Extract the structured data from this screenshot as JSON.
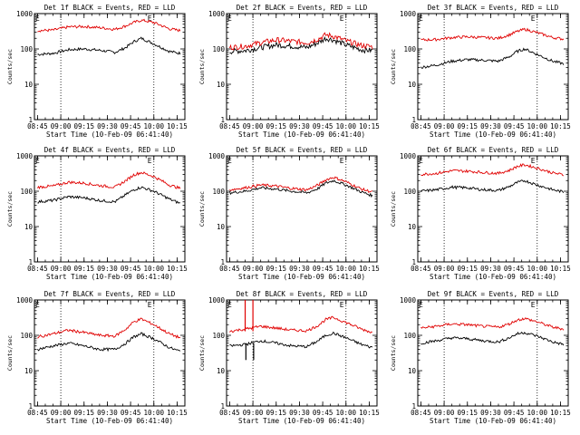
{
  "chart_data": [
    {
      "type": "line",
      "title": "Det 1f BLACK = Events, RED = LLD",
      "xlabel": "Start Time (10-Feb-09 06:41:40)",
      "ylabel": "Counts/sec",
      "xticks": [
        "08:45",
        "09:00",
        "09:15",
        "09:30",
        "09:45",
        "10:00",
        "10:15"
      ],
      "yticks": [
        "1",
        "10",
        "100",
        "1000"
      ],
      "ylim": [
        1,
        1000
      ],
      "yscale": "log",
      "markers": [
        "09:00",
        "10:00"
      ],
      "marker_labels": [
        "E",
        "E"
      ],
      "x": [
        "08:45",
        "08:55",
        "09:05",
        "09:15",
        "09:25",
        "09:35",
        "09:42",
        "09:47",
        "09:52",
        "10:00",
        "10:10",
        "10:17"
      ],
      "series": [
        {
          "name": "BLACK = Events",
          "color": "#000000",
          "values": [
            70,
            75,
            95,
            100,
            92,
            80,
            110,
            160,
            200,
            140,
            85,
            75
          ]
        },
        {
          "name": "RED = LLD",
          "color": "#e00000",
          "values": [
            330,
            340,
            420,
            430,
            400,
            360,
            450,
            560,
            650,
            560,
            370,
            330
          ]
        }
      ]
    },
    {
      "type": "line",
      "title": "Det 2f BLACK = Events, RED = LLD",
      "xlabel": "Start Time (10-Feb-09 06:41:40)",
      "ylabel": "Counts/sec",
      "xticks": [
        "08:45",
        "09:00",
        "09:15",
        "09:30",
        "09:45",
        "10:00",
        "10:15"
      ],
      "yticks": [
        "1",
        "10",
        "100",
        "1000"
      ],
      "ylim": [
        1,
        1000
      ],
      "yscale": "log",
      "markers": [
        "09:00",
        "10:00"
      ],
      "marker_labels": [
        "E",
        "E"
      ],
      "x": [
        "08:45",
        "08:55",
        "09:05",
        "09:15",
        "09:25",
        "09:35",
        "09:42",
        "09:47",
        "09:52",
        "10:00",
        "10:10",
        "10:17"
      ],
      "series": [
        {
          "name": "BLACK = Events",
          "color": "#000000",
          "values": [
            85,
            90,
            110,
            130,
            120,
            110,
            150,
            200,
            180,
            130,
            95,
            90
          ]
        },
        {
          "name": "RED = LLD",
          "color": "#e00000",
          "values": [
            110,
            120,
            150,
            180,
            165,
            150,
            190,
            250,
            230,
            170,
            125,
            115
          ]
        }
      ]
    },
    {
      "type": "line",
      "title": "Det 3f BLACK = Events, RED = LLD",
      "xlabel": "Start Time (10-Feb-09 06:41:40)",
      "ylabel": "Counts/sec",
      "xticks": [
        "08:45",
        "09:00",
        "09:15",
        "09:30",
        "09:45",
        "10:00",
        "10:15"
      ],
      "yticks": [
        "1",
        "10",
        "100",
        "1000"
      ],
      "ylim": [
        1,
        1000
      ],
      "yscale": "log",
      "markers": [
        "09:00",
        "10:00"
      ],
      "marker_labels": [
        "E",
        "E"
      ],
      "x": [
        "08:45",
        "08:55",
        "09:05",
        "09:15",
        "09:25",
        "09:35",
        "09:42",
        "09:47",
        "09:52",
        "10:00",
        "10:10",
        "10:17"
      ],
      "series": [
        {
          "name": "BLACK = Events",
          "color": "#000000",
          "values": [
            30,
            35,
            45,
            50,
            48,
            45,
            60,
            85,
            100,
            70,
            45,
            38
          ]
        },
        {
          "name": "RED = LLD",
          "color": "#e00000",
          "values": [
            180,
            185,
            210,
            220,
            210,
            200,
            250,
            310,
            360,
            290,
            210,
            190
          ]
        }
      ]
    },
    {
      "type": "line",
      "title": "Det 4f BLACK = Events, RED = LLD",
      "xlabel": "Start Time (10-Feb-09 06:41:40)",
      "ylabel": "Counts/sec",
      "xticks": [
        "08:45",
        "09:00",
        "09:15",
        "09:30",
        "09:45",
        "10:00",
        "10:15"
      ],
      "yticks": [
        "1",
        "10",
        "100",
        "1000"
      ],
      "ylim": [
        1,
        1000
      ],
      "yscale": "log",
      "markers": [
        "09:00",
        "10:00"
      ],
      "marker_labels": [
        "E",
        "E"
      ],
      "x": [
        "08:45",
        "08:55",
        "09:05",
        "09:15",
        "09:25",
        "09:35",
        "09:42",
        "09:47",
        "09:52",
        "10:00",
        "10:10",
        "10:17"
      ],
      "series": [
        {
          "name": "BLACK = Events",
          "color": "#000000",
          "values": [
            50,
            55,
            70,
            65,
            55,
            50,
            80,
            110,
            130,
            100,
            60,
            45
          ]
        },
        {
          "name": "RED = LLD",
          "color": "#e00000",
          "values": [
            130,
            140,
            180,
            170,
            145,
            130,
            200,
            290,
            340,
            260,
            150,
            120
          ]
        }
      ]
    },
    {
      "type": "line",
      "title": "Det 5f BLACK = Events, RED = LLD",
      "xlabel": "Start Time (10-Feb-09 06:41:40)",
      "ylabel": "Counts/sec",
      "xticks": [
        "08:45",
        "09:00",
        "09:15",
        "09:30",
        "09:45",
        "10:00",
        "10:15"
      ],
      "yticks": [
        "1",
        "10",
        "100",
        "1000"
      ],
      "ylim": [
        1,
        1000
      ],
      "yscale": "log",
      "markers": [
        "09:00",
        "10:00"
      ],
      "marker_labels": [
        "E",
        "E"
      ],
      "x": [
        "08:45",
        "08:55",
        "09:05",
        "09:15",
        "09:25",
        "09:35",
        "09:42",
        "09:47",
        "09:52",
        "10:00",
        "10:10",
        "10:17"
      ],
      "series": [
        {
          "name": "BLACK = Events",
          "color": "#000000",
          "values": [
            90,
            100,
            125,
            115,
            100,
            90,
            120,
            170,
            200,
            150,
            95,
            75
          ]
        },
        {
          "name": "RED = LLD",
          "color": "#e00000",
          "values": [
            110,
            125,
            150,
            140,
            120,
            110,
            150,
            210,
            250,
            185,
            115,
            95
          ]
        }
      ]
    },
    {
      "type": "line",
      "title": "Det 6f BLACK = Events, RED = LLD",
      "xlabel": "Start Time (10-Feb-09 06:41:40)",
      "ylabel": "Counts/sec",
      "xticks": [
        "08:45",
        "09:00",
        "09:15",
        "09:30",
        "09:45",
        "10:00",
        "10:15"
      ],
      "yticks": [
        "1",
        "10",
        "100",
        "1000"
      ],
      "ylim": [
        1,
        1000
      ],
      "yscale": "log",
      "markers": [
        "09:00",
        "10:00"
      ],
      "marker_labels": [
        "E",
        "E"
      ],
      "x": [
        "08:45",
        "08:55",
        "09:05",
        "09:15",
        "09:25",
        "09:35",
        "09:42",
        "09:47",
        "09:52",
        "10:00",
        "10:10",
        "10:17"
      ],
      "series": [
        {
          "name": "BLACK = Events",
          "color": "#000000",
          "values": [
            100,
            110,
            130,
            125,
            110,
            105,
            135,
            175,
            200,
            150,
            110,
            95
          ]
        },
        {
          "name": "RED = LLD",
          "color": "#e00000",
          "values": [
            300,
            320,
            380,
            370,
            340,
            320,
            390,
            500,
            560,
            450,
            330,
            290
          ]
        }
      ]
    },
    {
      "type": "line",
      "title": "Det 7f BLACK = Events, RED = LLD",
      "xlabel": "Start Time (10-Feb-09 06:41:40)",
      "ylabel": "Counts/sec",
      "xticks": [
        "08:45",
        "09:00",
        "09:15",
        "09:30",
        "09:45",
        "10:00",
        "10:15"
      ],
      "yticks": [
        "1",
        "10",
        "100",
        "1000"
      ],
      "ylim": [
        1,
        1000
      ],
      "yscale": "log",
      "markers": [
        "09:00",
        "10:00"
      ],
      "marker_labels": [
        "E",
        "E"
      ],
      "x": [
        "08:45",
        "08:55",
        "09:05",
        "09:15",
        "09:25",
        "09:35",
        "09:42",
        "09:47",
        "09:52",
        "10:00",
        "10:10",
        "10:17"
      ],
      "series": [
        {
          "name": "BLACK = Events",
          "color": "#000000",
          "values": [
            40,
            50,
            60,
            50,
            40,
            40,
            60,
            90,
            110,
            80,
            45,
            35
          ]
        },
        {
          "name": "RED = LLD",
          "color": "#e00000",
          "values": [
            90,
            110,
            140,
            120,
            100,
            95,
            150,
            240,
            290,
            200,
            110,
            85
          ]
        }
      ]
    },
    {
      "type": "line",
      "title": "Det 8f BLACK = Events, RED = LLD",
      "xlabel": "Start Time (10-Feb-09 06:41:40)",
      "ylabel": "Counts/sec",
      "xticks": [
        "08:45",
        "09:00",
        "09:15",
        "09:30",
        "09:45",
        "10:00",
        "10:15"
      ],
      "yticks": [
        "1",
        "10",
        "100",
        "1000"
      ],
      "ylim": [
        1,
        1000
      ],
      "yscale": "log",
      "markers": [
        "09:00",
        "10:00"
      ],
      "marker_labels": [
        "E",
        "E"
      ],
      "x": [
        "08:45",
        "08:55",
        "09:05",
        "09:15",
        "09:25",
        "09:35",
        "09:42",
        "09:47",
        "09:52",
        "10:00",
        "10:10",
        "10:17"
      ],
      "series": [
        {
          "name": "BLACK = Events",
          "color": "#000000",
          "values": [
            50,
            55,
            70,
            60,
            50,
            48,
            70,
            100,
            115,
            85,
            55,
            45
          ]
        },
        {
          "name": "RED = LLD",
          "color": "#e00000",
          "values": [
            130,
            150,
            180,
            160,
            140,
            135,
            190,
            280,
            320,
            230,
            150,
            120
          ]
        }
      ],
      "spike_x": [
        "08:55",
        "09:00"
      ]
    },
    {
      "type": "line",
      "title": "Det 9f BLACK = Events, RED = LLD",
      "xlabel": "Start Time (10-Feb-09 06:41:40)",
      "ylabel": "Counts/sec",
      "xticks": [
        "08:45",
        "09:00",
        "09:15",
        "09:30",
        "09:45",
        "10:00",
        "10:15"
      ],
      "yticks": [
        "1",
        "10",
        "100",
        "1000"
      ],
      "ylim": [
        1,
        1000
      ],
      "yscale": "log",
      "markers": [
        "09:00",
        "10:00"
      ],
      "marker_labels": [
        "E",
        "E"
      ],
      "x": [
        "08:45",
        "08:55",
        "09:05",
        "09:15",
        "09:25",
        "09:35",
        "09:42",
        "09:47",
        "09:52",
        "10:00",
        "10:10",
        "10:17"
      ],
      "series": [
        {
          "name": "BLACK = Events",
          "color": "#000000",
          "values": [
            60,
            70,
            85,
            80,
            70,
            65,
            85,
            110,
            120,
            95,
            65,
            55
          ]
        },
        {
          "name": "RED = LLD",
          "color": "#e00000",
          "values": [
            160,
            180,
            210,
            200,
            180,
            170,
            210,
            270,
            300,
            240,
            170,
            150
          ]
        }
      ]
    }
  ]
}
